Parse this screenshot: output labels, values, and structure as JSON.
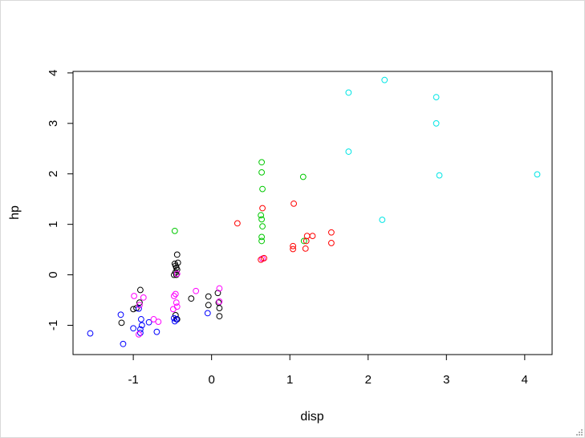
{
  "chart_data": {
    "type": "scatter",
    "title": "",
    "xlabel": "disp",
    "ylabel": "hp",
    "xlim": [
      -1.77,
      4.35
    ],
    "ylim": [
      -1.58,
      4.03
    ],
    "x_ticks": [
      -1,
      0,
      1,
      2,
      3,
      4
    ],
    "y_ticks": [
      -1,
      0,
      1,
      2,
      3,
      4
    ],
    "x_tick_labels": [
      "-1",
      "0",
      "1",
      "2",
      "3",
      "4"
    ],
    "y_tick_labels": [
      "-1",
      "0",
      "1",
      "2",
      "3",
      "4"
    ],
    "grid": false,
    "legend": "none",
    "marker": "open-circle",
    "series": [
      {
        "color": "#000000",
        "points": [
          [
            -0.91,
            -0.3
          ],
          [
            -0.96,
            -0.66
          ],
          [
            -1.0,
            -0.68
          ],
          [
            -1.15,
            -0.95
          ],
          [
            -0.92,
            -0.55
          ],
          [
            -0.47,
            0.22
          ],
          [
            -0.46,
            0.18
          ],
          [
            -0.45,
            0.14
          ],
          [
            -0.44,
            0.1
          ],
          [
            -0.46,
            0.05
          ],
          [
            -0.45,
            0.0
          ],
          [
            -0.44,
            0.4
          ],
          [
            -0.48,
            0.0
          ],
          [
            -0.43,
            0.24
          ],
          [
            -0.26,
            -0.47
          ],
          [
            -0.04,
            -0.43
          ],
          [
            -0.04,
            -0.6
          ],
          [
            0.08,
            -0.36
          ],
          [
            0.1,
            -0.66
          ],
          [
            0.1,
            -0.82
          ],
          [
            0.09,
            -0.55
          ],
          [
            -0.46,
            -0.8
          ],
          [
            -0.44,
            -0.88
          ]
        ]
      },
      {
        "color": "#0000ff",
        "points": [
          [
            -1.55,
            -1.16
          ],
          [
            -1.13,
            -1.37
          ],
          [
            -1.16,
            -0.79
          ],
          [
            -1.0,
            -1.06
          ],
          [
            -0.91,
            -1.08
          ],
          [
            -0.91,
            -1.15
          ],
          [
            -0.9,
            -0.88
          ],
          [
            -0.89,
            -1.0
          ],
          [
            -0.8,
            -0.94
          ],
          [
            -0.7,
            -1.13
          ],
          [
            -0.48,
            -0.86
          ],
          [
            -0.47,
            -0.92
          ],
          [
            -0.45,
            -0.88
          ],
          [
            -0.93,
            -0.67
          ],
          [
            -0.05,
            -0.76
          ]
        ]
      },
      {
        "color": "#ff00ff",
        "points": [
          [
            -0.99,
            -0.42
          ],
          [
            -0.92,
            -0.6
          ],
          [
            -0.87,
            -0.45
          ],
          [
            -0.74,
            -0.88
          ],
          [
            -0.68,
            -0.93
          ],
          [
            -0.93,
            -1.18
          ],
          [
            -0.48,
            -0.42
          ],
          [
            -0.45,
            -0.55
          ],
          [
            -0.44,
            -0.63
          ],
          [
            -0.49,
            -0.68
          ],
          [
            -0.2,
            -0.32
          ],
          [
            0.1,
            -0.27
          ],
          [
            0.1,
            -0.53
          ],
          [
            -0.46,
            -0.38
          ],
          [
            -0.44,
            0.02
          ],
          [
            0.65,
            0.32
          ]
        ]
      },
      {
        "color": "#00c800",
        "points": [
          [
            -0.47,
            0.87
          ],
          [
            0.64,
            2.23
          ],
          [
            0.64,
            2.03
          ],
          [
            0.65,
            1.7
          ],
          [
            0.63,
            1.18
          ],
          [
            0.64,
            1.1
          ],
          [
            0.65,
            0.96
          ],
          [
            0.64,
            0.75
          ],
          [
            0.64,
            0.67
          ],
          [
            1.17,
            1.94
          ],
          [
            1.18,
            0.67
          ]
        ]
      },
      {
        "color": "#ff0000",
        "points": [
          [
            0.33,
            1.02
          ],
          [
            0.63,
            0.3
          ],
          [
            0.65,
            1.32
          ],
          [
            1.05,
            1.41
          ],
          [
            1.04,
            0.57
          ],
          [
            1.04,
            0.51
          ],
          [
            1.2,
            0.52
          ],
          [
            1.21,
            0.67
          ],
          [
            1.22,
            0.77
          ],
          [
            1.29,
            0.77
          ],
          [
            1.53,
            0.84
          ],
          [
            1.53,
            0.63
          ],
          [
            0.67,
            0.33
          ]
        ]
      },
      {
        "color": "#00e5e5",
        "points": [
          [
            1.75,
            3.61
          ],
          [
            2.21,
            3.86
          ],
          [
            2.87,
            3.52
          ],
          [
            2.87,
            3.0
          ],
          [
            1.75,
            2.44
          ],
          [
            2.91,
            1.97
          ],
          [
            4.16,
            1.99
          ],
          [
            2.18,
            1.09
          ]
        ]
      }
    ]
  }
}
